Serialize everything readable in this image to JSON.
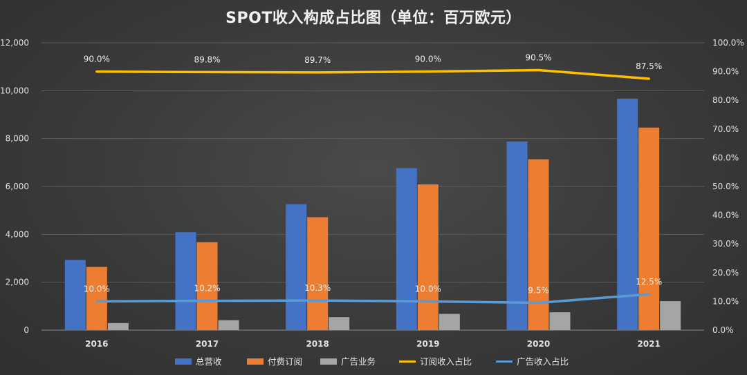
{
  "chart_data": {
    "type": "bar",
    "title": "SPOT收入构成占比图（单位：百万欧元）",
    "categories": [
      "2016",
      "2017",
      "2018",
      "2019",
      "2020",
      "2021"
    ],
    "y_left": {
      "min": 0,
      "max": 12000,
      "step": 2000,
      "tick_labels": [
        "0",
        "2,000",
        "4,000",
        "6,000",
        "8,000",
        "10,000",
        "12,000"
      ]
    },
    "y_right": {
      "min": 0,
      "max": 100,
      "step": 10,
      "tick_labels": [
        "0.0%",
        "10.0%",
        "20.0%",
        "30.0%",
        "40.0%",
        "50.0%",
        "60.0%",
        "70.0%",
        "80.0%",
        "90.0%",
        "100.0%"
      ]
    },
    "grid": true,
    "legend_position": "bottom",
    "bar_series": [
      {
        "name": "总营收",
        "color": "#4472C4",
        "values": [
          2933,
          4090,
          5259,
          6764,
          7880,
          9668
        ]
      },
      {
        "name": "付费订阅",
        "color": "#ED7D31",
        "values": [
          2640,
          3674,
          4717,
          6086,
          7135,
          8460
        ]
      },
      {
        "name": "广告业务",
        "color": "#A5A5A5",
        "values": [
          295,
          416,
          542,
          678,
          745,
          1208
        ]
      }
    ],
    "line_series": [
      {
        "name": "订阅收入占比",
        "color": "#FFC000",
        "axis": "right",
        "values": [
          90.0,
          89.8,
          89.7,
          90.0,
          90.5,
          87.5
        ],
        "labels": [
          "90.0%",
          "89.8%",
          "89.7%",
          "90.0%",
          "90.5%",
          "87.5%"
        ]
      },
      {
        "name": "广告收入占比",
        "color": "#5B9BD5",
        "axis": "right",
        "values": [
          10.0,
          10.2,
          10.3,
          10.0,
          9.5,
          12.5
        ],
        "labels": [
          "10.0%",
          "10.2%",
          "10.3%",
          "10.0%",
          "9.5%",
          "12.5%"
        ]
      }
    ]
  }
}
